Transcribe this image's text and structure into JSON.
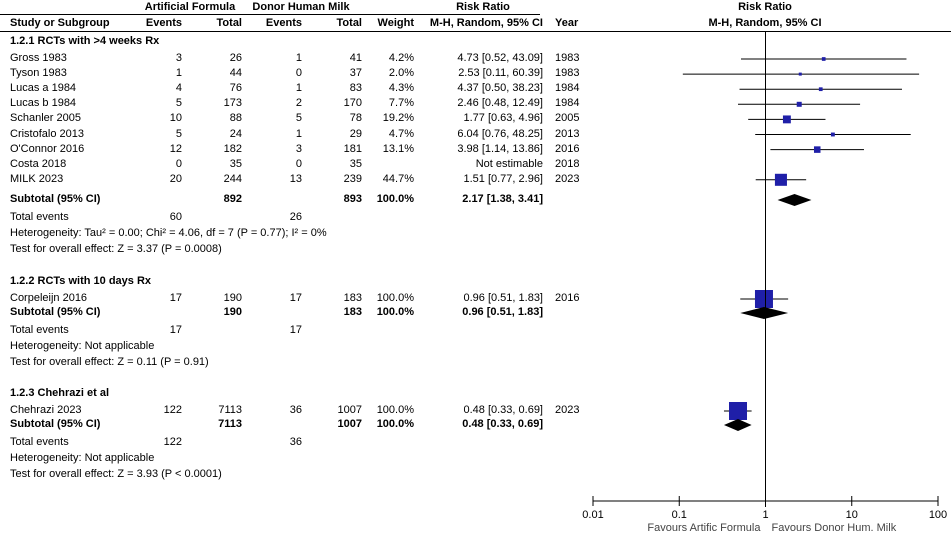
{
  "header": {
    "group1": "Artificial Formula",
    "group2": "Donor Human Milk",
    "rr_title": "Risk Ratio",
    "plot_title": "Risk Ratio",
    "col_study": "Study or Subgroup",
    "col_events1": "Events",
    "col_total1": "Total",
    "col_events2": "Events",
    "col_total2": "Total",
    "col_weight": "Weight",
    "col_ci": "M-H, Random, 95% CI",
    "col_year": "Year",
    "plot_subtitle": "M-H, Random, 95% CI"
  },
  "subgroups": [
    {
      "title": "1.2.1 RCTs with >4 weeks Rx",
      "studies": [
        {
          "name": "Gross 1983",
          "e1": "3",
          "t1": "26",
          "e2": "1",
          "t2": "41",
          "weight": "4.2%",
          "ci": "4.73 [0.52, 43.09]",
          "year": "1983",
          "rr": 4.73,
          "lo": 0.52,
          "hi": 43.09,
          "w": 4.2
        },
        {
          "name": "Tyson 1983",
          "e1": "1",
          "t1": "44",
          "e2": "0",
          "t2": "37",
          "weight": "2.0%",
          "ci": "2.53 [0.11, 60.39]",
          "year": "1983",
          "rr": 2.53,
          "lo": 0.11,
          "hi": 60.39,
          "w": 2.0
        },
        {
          "name": "Lucas a 1984",
          "e1": "4",
          "t1": "76",
          "e2": "1",
          "t2": "83",
          "weight": "4.3%",
          "ci": "4.37 [0.50, 38.23]",
          "year": "1984",
          "rr": 4.37,
          "lo": 0.5,
          "hi": 38.23,
          "w": 4.3
        },
        {
          "name": "Lucas b 1984",
          "e1": "5",
          "t1": "173",
          "e2": "2",
          "t2": "170",
          "weight": "7.7%",
          "ci": "2.46 [0.48, 12.49]",
          "year": "1984",
          "rr": 2.46,
          "lo": 0.48,
          "hi": 12.49,
          "w": 7.7
        },
        {
          "name": "Schanler 2005",
          "e1": "10",
          "t1": "88",
          "e2": "5",
          "t2": "78",
          "weight": "19.2%",
          "ci": "1.77 [0.63, 4.96]",
          "year": "2005",
          "rr": 1.77,
          "lo": 0.63,
          "hi": 4.96,
          "w": 19.2
        },
        {
          "name": "Cristofalo 2013",
          "e1": "5",
          "t1": "24",
          "e2": "1",
          "t2": "29",
          "weight": "4.7%",
          "ci": "6.04 [0.76, 48.25]",
          "year": "2013",
          "rr": 6.04,
          "lo": 0.76,
          "hi": 48.25,
          "w": 4.7
        },
        {
          "name": "O'Connor 2016",
          "e1": "12",
          "t1": "182",
          "e2": "3",
          "t2": "181",
          "weight": "13.1%",
          "ci": "3.98 [1.14, 13.86]",
          "year": "2016",
          "rr": 3.98,
          "lo": 1.14,
          "hi": 13.86,
          "w": 13.1
        },
        {
          "name": "Costa 2018",
          "e1": "0",
          "t1": "35",
          "e2": "0",
          "t2": "35",
          "weight": "",
          "ci": "Not estimable",
          "year": "2018",
          "rr": null,
          "lo": null,
          "hi": null,
          "w": 0
        },
        {
          "name": "MILK 2023",
          "e1": "20",
          "t1": "244",
          "e2": "13",
          "t2": "239",
          "weight": "44.7%",
          "ci": "1.51 [0.77, 2.96]",
          "year": "2023",
          "rr": 1.51,
          "lo": 0.77,
          "hi": 2.96,
          "w": 44.7
        }
      ],
      "subtotal": {
        "label": "Subtotal (95% CI)",
        "t1": "892",
        "t2": "893",
        "weight": "100.0%",
        "ci": "2.17 [1.38, 3.41]",
        "rr": 2.17,
        "lo": 1.38,
        "hi": 3.41
      },
      "total_events": {
        "label": "Total events",
        "e1": "60",
        "e2": "26"
      },
      "heterogeneity": "Heterogeneity: Tau² = 0.00; Chi² = 4.06, df = 7 (P = 0.77); I² = 0%",
      "overall": "Test for overall effect: Z = 3.37 (P = 0.0008)"
    },
    {
      "title": "1.2.2 RCTs with 10 days Rx",
      "studies": [
        {
          "name": "Corpeleijn 2016",
          "e1": "17",
          "t1": "190",
          "e2": "17",
          "t2": "183",
          "weight": "100.0%",
          "ci": "0.96 [0.51, 1.83]",
          "year": "2016",
          "rr": 0.96,
          "lo": 0.51,
          "hi": 1.83,
          "w": 100
        }
      ],
      "subtotal": {
        "label": "Subtotal (95% CI)",
        "t1": "190",
        "t2": "183",
        "weight": "100.0%",
        "ci": "0.96 [0.51, 1.83]",
        "rr": 0.96,
        "lo": 0.51,
        "hi": 1.83
      },
      "total_events": {
        "label": "Total events",
        "e1": "17",
        "e2": "17"
      },
      "heterogeneity": "Heterogeneity: Not applicable",
      "overall": "Test for overall effect: Z = 0.11 (P = 0.91)"
    },
    {
      "title": "1.2.3 Chehrazi et al",
      "studies": [
        {
          "name": "Chehrazi 2023",
          "e1": "122",
          "t1": "7113",
          "e2": "36",
          "t2": "1007",
          "weight": "100.0%",
          "ci": "0.48 [0.33, 0.69]",
          "year": "2023",
          "rr": 0.48,
          "lo": 0.33,
          "hi": 0.69,
          "w": 100
        }
      ],
      "subtotal": {
        "label": "Subtotal (95% CI)",
        "t1": "7113",
        "t2": "1007",
        "weight": "100.0%",
        "ci": "0.48 [0.33, 0.69]",
        "rr": 0.48,
        "lo": 0.33,
        "hi": 0.69
      },
      "total_events": {
        "label": "Total events",
        "e1": "122",
        "e2": "36"
      },
      "heterogeneity": "Heterogeneity: Not applicable",
      "overall": "Test for overall effect: Z = 3.93 (P < 0.0001)"
    }
  ],
  "chart_data": {
    "type": "forest",
    "scale": "log",
    "xlim": [
      0.01,
      100
    ],
    "ticks": [
      0.01,
      0.1,
      1,
      10,
      100
    ],
    "tick_labels": [
      "0.01",
      "0.1",
      "1",
      "10",
      "100"
    ],
    "reference_line": 1,
    "favours_left": "Favours Artific Formula",
    "favours_right": "Favours Donor Hum. Milk",
    "colors": {
      "square": "#1f1fa8",
      "diamond": "#000000",
      "line": "#000000"
    }
  }
}
